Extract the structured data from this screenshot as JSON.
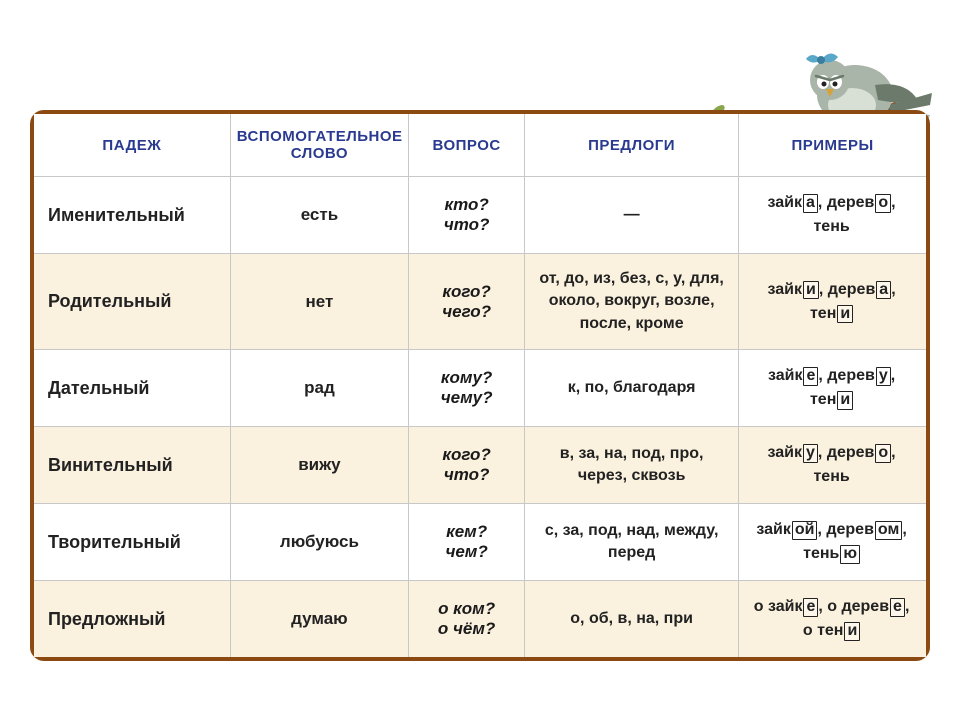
{
  "headers": {
    "case": "ПАДЕЖ",
    "aux": "ВСПОМОГАТЕЛЬНОЕ СЛОВО",
    "question": "ВОПРОС",
    "preps": "ПРЕДЛОГИ",
    "examples": "ПРИМЕРЫ"
  },
  "rows": [
    {
      "case": "Именительный",
      "aux": "есть",
      "q1": "кто?",
      "q2": "что?",
      "preps": "—",
      "ex": [
        {
          "stem": "зайк",
          "end": "а",
          "comma": ","
        },
        {
          "stem": " дерев",
          "end": "о",
          "comma": ","
        },
        {
          "stem": "тень",
          "end": "",
          "comma": ""
        }
      ],
      "ex_break_after": 2
    },
    {
      "case": "Родительный",
      "aux": "нет",
      "q1": "кого?",
      "q2": "чего?",
      "preps": "от, до, из, без, с, у, для, около, вокруг, возле, после, кроме",
      "ex": [
        {
          "stem": "зайк",
          "end": "и",
          "comma": ","
        },
        {
          "stem": " дерев",
          "end": "а",
          "comma": ","
        },
        {
          "stem": "тен",
          "end": "и",
          "comma": ""
        }
      ],
      "ex_break_after": 2
    },
    {
      "case": "Дательный",
      "aux": "рад",
      "q1": "кому?",
      "q2": "чему?",
      "preps": "к, по, благодаря",
      "ex": [
        {
          "stem": "зайк",
          "end": "е",
          "comma": ","
        },
        {
          "stem": " дерев",
          "end": "у",
          "comma": ","
        },
        {
          "stem": "тен",
          "end": "и",
          "comma": ""
        }
      ],
      "ex_break_after": 2
    },
    {
      "case": "Винительный",
      "aux": "вижу",
      "q1": "кого?",
      "q2": "что?",
      "preps": "в, за, на, под, про, через, сквозь",
      "ex": [
        {
          "stem": "зайк",
          "end": "у",
          "comma": ","
        },
        {
          "stem": " дерев",
          "end": "о",
          "comma": ","
        },
        {
          "stem": "тень",
          "end": "",
          "comma": ""
        }
      ],
      "ex_break_after": 2
    },
    {
      "case": "Творительный",
      "aux": "любуюсь",
      "q1": "кем?",
      "q2": "чем?",
      "preps": "с, за, под, над, между, перед",
      "ex": [
        {
          "stem": "зайк",
          "end": "ой",
          "comma": ","
        },
        {
          "stem": " дерев",
          "end": "ом",
          "comma": ","
        },
        {
          "stem": "тень",
          "end": "ю",
          "comma": ""
        }
      ],
      "ex_break_after": 2
    },
    {
      "case": "Предложный",
      "aux": "думаю",
      "q1": "о ком?",
      "q2": "о чём?",
      "preps": "о, об, в, на, при",
      "ex": [
        {
          "stem": "о зайк",
          "end": "е",
          "comma": ","
        },
        {
          "stem": " о дерев",
          "end": "е",
          "comma": ","
        },
        {
          "stem": "о тен",
          "end": "и",
          "comma": ""
        }
      ],
      "ex_break_after": 2
    }
  ],
  "col_widths": [
    "22%",
    "20%",
    "13%",
    "24%",
    "21%"
  ],
  "colors": {
    "border": "#8a4a12",
    "header_text": "#2a3a90",
    "odd_row_bg": "#faf1de",
    "even_row_bg": "#ffffff",
    "bird_body": "#a9b5a8",
    "bird_dark": "#6c7a6b",
    "bow": "#5aa7c8",
    "branch": "#8a5a32",
    "leaf": "#8aa64a"
  }
}
